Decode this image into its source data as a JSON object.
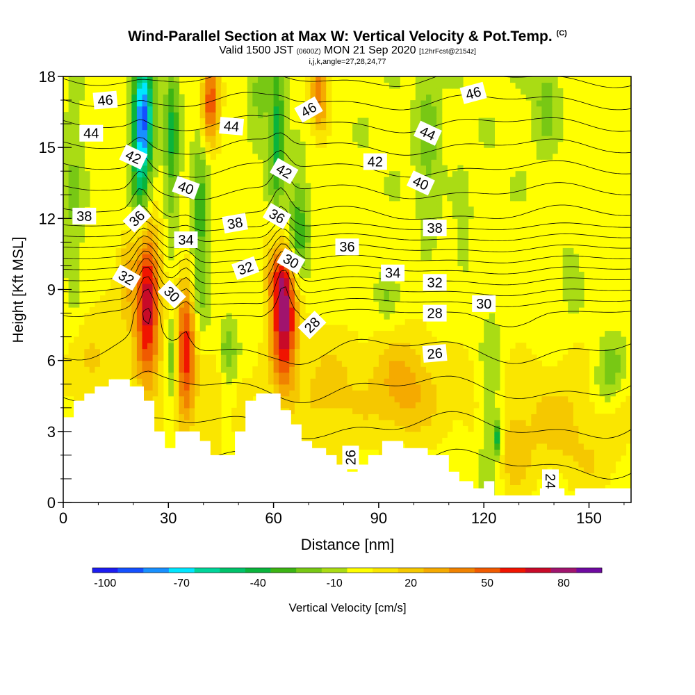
{
  "title": {
    "main": "Wind-Parallel Section at Max W: Vertical Velocity & Pot.Temp.",
    "copyright": "(C)",
    "valid_prefix": "Valid 1500 JST",
    "valid_utc": "(0600Z)",
    "valid_date": "MON 21 Sep 2020",
    "forecast": "[12hrFcst@2154z]",
    "indices": "i,j,k,angle=27,28,24,77"
  },
  "chart_data": {
    "type": "heatmap",
    "xlabel": "Distance [nm]",
    "ylabel": "Height [Kft MSL]",
    "xlim": [
      0,
      162
    ],
    "ylim": [
      0,
      18
    ],
    "x_ticks": [
      "0",
      "30",
      "60",
      "90",
      "120",
      "150"
    ],
    "y_ticks": [
      "0",
      "3",
      "6",
      "9",
      "12",
      "15",
      "18"
    ],
    "colorbar": {
      "label": "Vertical Velocity [cm/s]",
      "tick_labels": [
        "-100",
        "-70",
        "-40",
        "-10",
        "20",
        "50",
        "80"
      ],
      "levels": [
        -100,
        -90,
        -80,
        -70,
        -60,
        -50,
        -40,
        -30,
        -20,
        -10,
        0,
        10,
        20,
        30,
        40,
        50,
        60,
        70,
        80,
        90
      ],
      "colors": [
        "#1c1cf0",
        "#1450ff",
        "#1890ff",
        "#00e6ff",
        "#00d59a",
        "#00c26a",
        "#0ab43c",
        "#3cb414",
        "#78c814",
        "#aadc14",
        "#ffff00",
        "#fae600",
        "#f5c800",
        "#f5aa00",
        "#f08200",
        "#f05a00",
        "#f01400",
        "#c80a28",
        "#a0146e",
        "#6e0aa0"
      ]
    },
    "terrain": [
      [
        0,
        3.6
      ],
      [
        3,
        3.6
      ],
      [
        3,
        4.3
      ],
      [
        6,
        4.3
      ],
      [
        6,
        4.6
      ],
      [
        9,
        4.6
      ],
      [
        9,
        4.9
      ],
      [
        13,
        4.9
      ],
      [
        13,
        5.2
      ],
      [
        19,
        5.2
      ],
      [
        19,
        4.9
      ],
      [
        23,
        4.9
      ],
      [
        23,
        4.3
      ],
      [
        26,
        4.3
      ],
      [
        26,
        3.0
      ],
      [
        29,
        3.0
      ],
      [
        29,
        2.3
      ],
      [
        32,
        2.3
      ],
      [
        32,
        3.0
      ],
      [
        39,
        3.0
      ],
      [
        39,
        2.6
      ],
      [
        42,
        2.6
      ],
      [
        42,
        2.0
      ],
      [
        49,
        2.0
      ],
      [
        49,
        3.0
      ],
      [
        52,
        3.0
      ],
      [
        52,
        4.3
      ],
      [
        55,
        4.3
      ],
      [
        55,
        4.6
      ],
      [
        62,
        4.6
      ],
      [
        62,
        3.9
      ],
      [
        65,
        3.9
      ],
      [
        65,
        3.3
      ],
      [
        68,
        3.3
      ],
      [
        68,
        2.6
      ],
      [
        71,
        2.6
      ],
      [
        71,
        2.3
      ],
      [
        75,
        2.3
      ],
      [
        75,
        2.0
      ],
      [
        78,
        2.0
      ],
      [
        78,
        1.6
      ],
      [
        81,
        1.6
      ],
      [
        81,
        1.3
      ],
      [
        84,
        1.3
      ],
      [
        84,
        1.6
      ],
      [
        87,
        1.6
      ],
      [
        87,
        2.0
      ],
      [
        91,
        2.0
      ],
      [
        91,
        2.6
      ],
      [
        97,
        2.6
      ],
      [
        97,
        2.3
      ],
      [
        104,
        2.3
      ],
      [
        104,
        2.0
      ],
      [
        110,
        2.0
      ],
      [
        110,
        1.3
      ],
      [
        113,
        1.3
      ],
      [
        113,
        0.9
      ],
      [
        117,
        0.9
      ],
      [
        117,
        0.6
      ],
      [
        120,
        0.6
      ],
      [
        120,
        0.9
      ],
      [
        123,
        0.9
      ],
      [
        123,
        0.3
      ],
      [
        136,
        0.3
      ],
      [
        136,
        0.6
      ],
      [
        143,
        0.6
      ],
      [
        143,
        0.3
      ],
      [
        146,
        0.3
      ],
      [
        146,
        0.6
      ],
      [
        162,
        0.6
      ]
    ],
    "w_features": [
      {
        "type": "updraft",
        "x": 24,
        "y": 8.5,
        "sx": 2.5,
        "sy": 2.3,
        "value": 75
      },
      {
        "type": "updraft",
        "x": 35,
        "y": 6.5,
        "sx": 2.0,
        "sy": 2.0,
        "value": 60
      },
      {
        "type": "updraft",
        "x": 63,
        "y": 7.8,
        "sx": 2.6,
        "sy": 2.0,
        "value": 80
      },
      {
        "type": "updraft",
        "x": 42,
        "y": 17.0,
        "sx": 1.8,
        "sy": 1.3,
        "value": 55
      },
      {
        "type": "updraft",
        "x": 73,
        "y": 17.3,
        "sx": 1.8,
        "sy": 1.1,
        "value": 45
      },
      {
        "type": "updraft",
        "x": 18,
        "y": 9.5,
        "sx": 2.0,
        "sy": 1.3,
        "value": 25
      },
      {
        "type": "updraft",
        "x": 61,
        "y": 9.5,
        "sx": 2.5,
        "sy": 0.9,
        "value": 25
      },
      {
        "type": "updraft",
        "x": 97,
        "y": 5.0,
        "sx": 6.0,
        "sy": 1.5,
        "value": 22
      },
      {
        "type": "updraft",
        "x": 128,
        "y": 2.0,
        "sx": 5.0,
        "sy": 1.5,
        "value": 18
      },
      {
        "type": "updraft",
        "x": 45,
        "y": 4.0,
        "sx": 4.0,
        "sy": 1.5,
        "value": 14
      },
      {
        "type": "updraft",
        "x": 10,
        "y": 6.5,
        "sx": 5.0,
        "sy": 1.5,
        "value": 14
      },
      {
        "type": "updraft",
        "x": 142,
        "y": 3.0,
        "sx": 5.0,
        "sy": 1.2,
        "value": 14
      },
      {
        "type": "updraft",
        "x": 76,
        "y": 5.0,
        "sx": 6.0,
        "sy": 2.0,
        "value": 10
      },
      {
        "type": "updraft",
        "x": 152,
        "y": 1.5,
        "sx": 5.0,
        "sy": 1.0,
        "value": 12
      },
      {
        "type": "downdraft",
        "x": 23,
        "y": 16.5,
        "sx": 2.0,
        "sy": 1.6,
        "value": -75
      },
      {
        "type": "downdraft",
        "x": 22,
        "y": 14.0,
        "sx": 1.8,
        "sy": 2.0,
        "value": -40
      },
      {
        "type": "downdraft",
        "x": 31,
        "y": 15.5,
        "sx": 1.5,
        "sy": 2.5,
        "value": -35
      },
      {
        "type": "downdraft",
        "x": 39,
        "y": 11.5,
        "sx": 1.6,
        "sy": 3.0,
        "value": -30
      },
      {
        "type": "downdraft",
        "x": 61,
        "y": 15.5,
        "sx": 1.6,
        "sy": 2.2,
        "value": -40
      },
      {
        "type": "downdraft",
        "x": 67,
        "y": 11.5,
        "sx": 2.0,
        "sy": 1.6,
        "value": -35
      },
      {
        "type": "downdraft",
        "x": 31,
        "y": 6.0,
        "sx": 1.2,
        "sy": 1.5,
        "value": -25
      },
      {
        "type": "downdraft",
        "x": 47,
        "y": 6.3,
        "sx": 2.0,
        "sy": 1.0,
        "value": -25
      },
      {
        "type": "downdraft",
        "x": 47,
        "y": 3.8,
        "sx": 1.6,
        "sy": 1.0,
        "value": -18
      },
      {
        "type": "downdraft",
        "x": 56,
        "y": 17.0,
        "sx": 2.0,
        "sy": 1.4,
        "value": -18
      },
      {
        "type": "downdraft",
        "x": 104,
        "y": 15.5,
        "sx": 2.2,
        "sy": 2.5,
        "value": -18
      },
      {
        "type": "downdraft",
        "x": 122,
        "y": 3.5,
        "sx": 2.5,
        "sy": 3.0,
        "value": -22
      },
      {
        "type": "downdraft",
        "x": 124,
        "y": 2.8,
        "sx": 0.8,
        "sy": 0.5,
        "value": -40
      },
      {
        "type": "downdraft",
        "x": 138,
        "y": 17.0,
        "sx": 2.5,
        "sy": 1.3,
        "value": -18
      },
      {
        "type": "downdraft",
        "x": 157,
        "y": 6.0,
        "sx": 3.0,
        "sy": 1.0,
        "value": -16
      },
      {
        "type": "downdraft",
        "x": 155,
        "y": 5.0,
        "sx": 3.0,
        "sy": 0.9,
        "value": -16
      },
      {
        "type": "downdraft",
        "x": 3,
        "y": 13.0,
        "sx": 2.0,
        "sy": 3.0,
        "value": -16
      },
      {
        "type": "downdraft",
        "x": 92,
        "y": 8.7,
        "sx": 2.0,
        "sy": 0.7,
        "value": -15
      },
      {
        "type": "downdraft",
        "x": 114,
        "y": 11.5,
        "sx": 1.2,
        "sy": 1.2,
        "value": -14
      },
      {
        "type": "downdraft",
        "x": 145,
        "y": 9.5,
        "sx": 2.0,
        "sy": 1.0,
        "value": -12
      }
    ],
    "isentrope_labels": [
      {
        "text": "46",
        "x": 12,
        "y": 17.0,
        "angle": -5
      },
      {
        "text": "44",
        "x": 8,
        "y": 15.6,
        "angle": 0
      },
      {
        "text": "42",
        "x": 20,
        "y": 14.6,
        "angle": 25
      },
      {
        "text": "46",
        "x": 70,
        "y": 16.6,
        "angle": -30
      },
      {
        "text": "44",
        "x": 48,
        "y": 15.9,
        "angle": 5
      },
      {
        "text": "42",
        "x": 63,
        "y": 14.0,
        "angle": 30
      },
      {
        "text": "42",
        "x": 89,
        "y": 14.4,
        "angle": 0
      },
      {
        "text": "46",
        "x": 117,
        "y": 17.3,
        "angle": -15
      },
      {
        "text": "44",
        "x": 104,
        "y": 15.6,
        "angle": 25
      },
      {
        "text": "40",
        "x": 102,
        "y": 13.5,
        "angle": 25
      },
      {
        "text": "40",
        "x": 35,
        "y": 13.3,
        "angle": 20
      },
      {
        "text": "38",
        "x": 6,
        "y": 12.1,
        "angle": 0
      },
      {
        "text": "36",
        "x": 21,
        "y": 12.0,
        "angle": -45
      },
      {
        "text": "38",
        "x": 49,
        "y": 11.8,
        "angle": -10
      },
      {
        "text": "36",
        "x": 61,
        "y": 12.1,
        "angle": 30
      },
      {
        "text": "38",
        "x": 106,
        "y": 11.6,
        "angle": 0
      },
      {
        "text": "34",
        "x": 35,
        "y": 11.1,
        "angle": 0
      },
      {
        "text": "36",
        "x": 81,
        "y": 10.8,
        "angle": 0
      },
      {
        "text": "32",
        "x": 18,
        "y": 9.5,
        "angle": 30
      },
      {
        "text": "32",
        "x": 52,
        "y": 9.9,
        "angle": -20
      },
      {
        "text": "30",
        "x": 65,
        "y": 10.2,
        "angle": 30
      },
      {
        "text": "30",
        "x": 31,
        "y": 8.8,
        "angle": 45
      },
      {
        "text": "34",
        "x": 94,
        "y": 9.7,
        "angle": 0
      },
      {
        "text": "32",
        "x": 106,
        "y": 9.3,
        "angle": 0
      },
      {
        "text": "30",
        "x": 120,
        "y": 8.4,
        "angle": 0
      },
      {
        "text": "28",
        "x": 106,
        "y": 8.0,
        "angle": 0
      },
      {
        "text": "28",
        "x": 71,
        "y": 7.5,
        "angle": -45
      },
      {
        "text": "26",
        "x": 106,
        "y": 6.3,
        "angle": -5
      },
      {
        "text": "26",
        "x": 82,
        "y": 1.9,
        "angle": -90
      },
      {
        "text": "24",
        "x": 139,
        "y": 0.9,
        "angle": 90
      }
    ]
  }
}
